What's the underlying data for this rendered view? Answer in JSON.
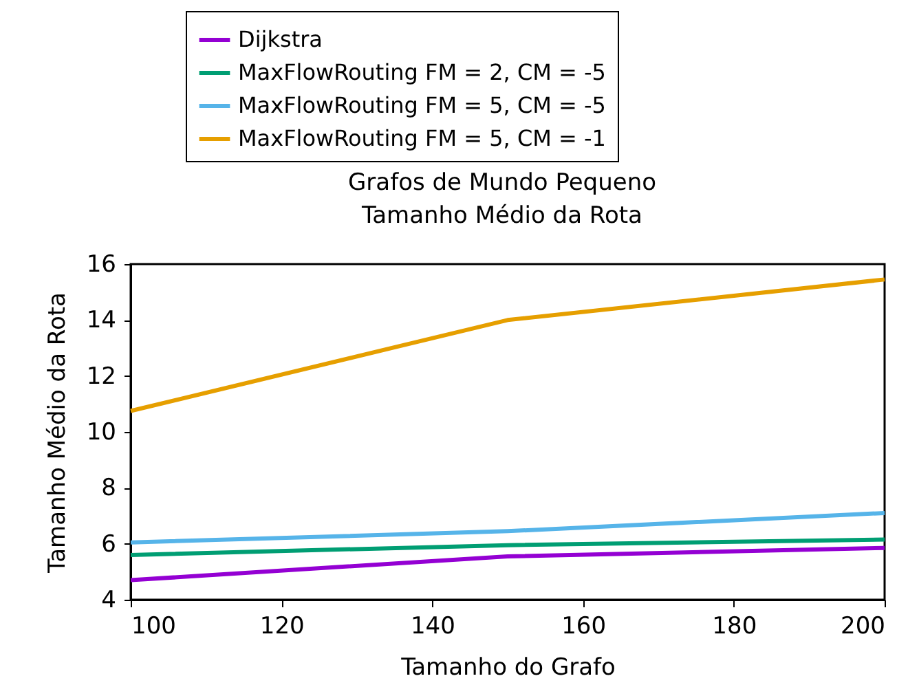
{
  "chart_data": {
    "type": "line",
    "title": [
      "Grafos de Mundo Pequeno",
      "Tamanho Médio da Rota"
    ],
    "xlabel": "Tamanho do Grafo",
    "ylabel": "Tamanho Médio da Rota",
    "x": [
      100,
      150,
      200
    ],
    "xlim": [
      100,
      200
    ],
    "xticks": [
      100,
      120,
      140,
      160,
      180,
      200
    ],
    "ylim": [
      4,
      16
    ],
    "yticks": [
      4,
      6,
      8,
      10,
      12,
      14,
      16
    ],
    "grid": false,
    "legend": "top",
    "marker": "none",
    "line_style": "solid",
    "series": [
      {
        "name": "Dijkstra",
        "color": "#9400d3",
        "values": [
          4.7,
          5.55,
          5.85
        ]
      },
      {
        "name": "MaxFlowRouting FM = 2, CM = -5",
        "color": "#009e73",
        "values": [
          5.6,
          5.95,
          6.15
        ]
      },
      {
        "name": "MaxFlowRouting FM = 5, CM = -5",
        "color": "#56b4e9",
        "values": [
          6.05,
          6.45,
          7.1
        ]
      },
      {
        "name": "MaxFlowRouting FM = 5, CM = -1",
        "color": "#e69f00",
        "values": [
          10.75,
          14.0,
          15.45
        ]
      }
    ]
  }
}
